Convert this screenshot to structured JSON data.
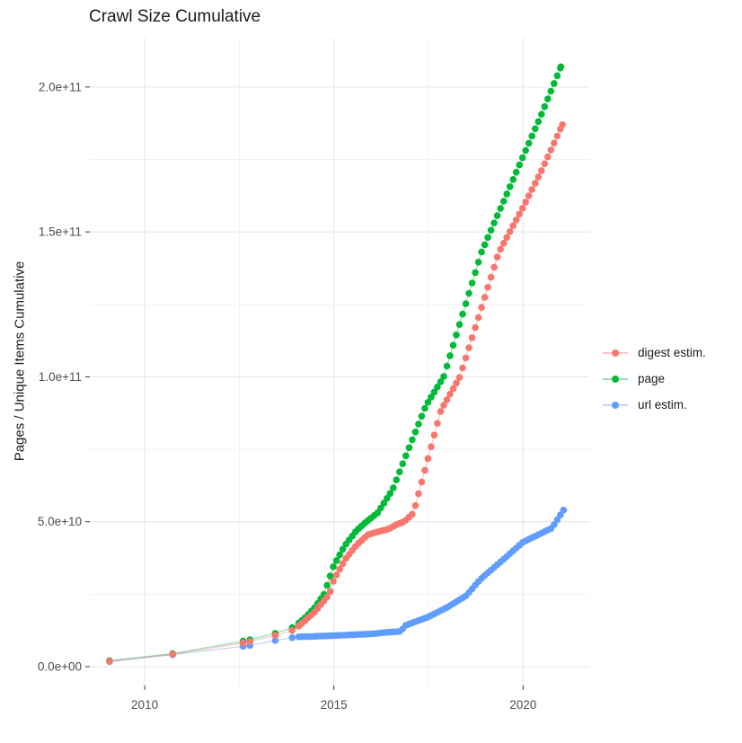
{
  "page": {
    "title": "Crawl Size Cumulative"
  },
  "chart_data": {
    "type": "scatter",
    "title": "Crawl Size Cumulative",
    "xlabel": "",
    "ylabel": "Pages / Unique Items Cumulative",
    "legend_position": "right",
    "grid": true,
    "value_unit": "billions (1e9)",
    "xlim": [
      2008.55,
      2021.75
    ],
    "ylim_e9": [
      -6.5,
      217
    ],
    "x_major_ticks": [
      {
        "value": 2010,
        "label": "2010"
      },
      {
        "value": 2015,
        "label": "2015"
      },
      {
        "value": 2020,
        "label": "2020"
      }
    ],
    "x_minor_ticks": [
      2012.5,
      2017.5
    ],
    "y_major_ticks": [
      {
        "value_e9": 0,
        "label": "0.0e+00"
      },
      {
        "value_e9": 50,
        "label": "5.0e+10"
      },
      {
        "value_e9": 100,
        "label": "1.0e+11"
      },
      {
        "value_e9": 150,
        "label": "1.5e+11"
      },
      {
        "value_e9": 200,
        "label": "2.0e+11"
      }
    ],
    "y_minor_ticks_e9": [
      25,
      75,
      125,
      175
    ],
    "monthly_step_years": 0.08333,
    "series": [
      {
        "name": "digest estim.",
        "color": "#F8766D",
        "sparse_points": [
          [
            2009.07,
            1.9
          ],
          [
            2010.74,
            4.3
          ],
          [
            2012.6,
            8.2
          ],
          [
            2012.78,
            8.7
          ],
          [
            2013.45,
            10.8
          ],
          [
            2013.9,
            12.5
          ]
        ],
        "anchors": [
          [
            2014.07,
            14
          ],
          [
            2014.25,
            16
          ],
          [
            2014.5,
            19
          ],
          [
            2014.88,
            25
          ],
          [
            2015.0,
            30
          ],
          [
            2015.3,
            37
          ],
          [
            2015.6,
            42
          ],
          [
            2015.9,
            45.5
          ],
          [
            2016.15,
            46.5
          ],
          [
            2016.45,
            47.5
          ],
          [
            2016.65,
            49
          ],
          [
            2016.86,
            50
          ],
          [
            2017.1,
            53
          ],
          [
            2017.83,
            88.5
          ],
          [
            2018.33,
            100
          ],
          [
            2019.36,
            143
          ],
          [
            2020.0,
            158.5
          ],
          [
            2020.5,
            171.5
          ],
          [
            2021.04,
            187
          ]
        ]
      },
      {
        "name": "page",
        "color": "#00BA38",
        "sparse_points": [
          [
            2009.07,
            2.1
          ],
          [
            2010.74,
            4.5
          ],
          [
            2012.6,
            8.8
          ],
          [
            2012.78,
            9.3
          ],
          [
            2013.45,
            11.5
          ],
          [
            2013.9,
            13.5
          ]
        ],
        "anchors": [
          [
            2014.07,
            15
          ],
          [
            2014.25,
            17
          ],
          [
            2014.5,
            20.5
          ],
          [
            2014.74,
            25
          ],
          [
            2015.0,
            35
          ],
          [
            2015.3,
            42
          ],
          [
            2015.6,
            47
          ],
          [
            2015.86,
            50
          ],
          [
            2016.15,
            53
          ],
          [
            2016.45,
            59
          ],
          [
            2016.55,
            61
          ],
          [
            2017.0,
            76
          ],
          [
            2017.43,
            90
          ],
          [
            2017.9,
            100
          ],
          [
            2018.9,
            143
          ],
          [
            2019.5,
            161
          ],
          [
            2020.0,
            176
          ],
          [
            2020.5,
            191
          ],
          [
            2021.0,
            207
          ]
        ]
      },
      {
        "name": "url estim.",
        "color": "#619CFF",
        "sparse_points": [
          [
            2009.07,
            1.7
          ],
          [
            2010.74,
            4.1
          ],
          [
            2012.6,
            7.0
          ],
          [
            2012.78,
            7.3
          ],
          [
            2013.45,
            9.0
          ],
          [
            2013.9,
            10.0
          ]
        ],
        "anchors": [
          [
            2014.07,
            10.3
          ],
          [
            2014.8,
            10.6
          ],
          [
            2015.5,
            11.0
          ],
          [
            2016.0,
            11.3
          ],
          [
            2016.36,
            11.8
          ],
          [
            2016.78,
            12.2
          ],
          [
            2016.88,
            14.2
          ],
          [
            2017.5,
            17.2
          ],
          [
            2018.0,
            20.5
          ],
          [
            2018.5,
            24.5
          ],
          [
            2018.86,
            30
          ],
          [
            2019.48,
            37
          ],
          [
            2020.0,
            43
          ],
          [
            2020.76,
            47.8
          ],
          [
            2021.07,
            54
          ]
        ]
      }
    ]
  },
  "legend": {
    "items": [
      {
        "label": "digest estim.",
        "color": "#F8766D"
      },
      {
        "label": "page",
        "color": "#00BA38"
      },
      {
        "label": "url estim.",
        "color": "#619CFF"
      }
    ]
  },
  "style_colors": {
    "grid_major": "#E4E4E4",
    "grid_minor": "#F2F2F2",
    "tick_mark": "#333333",
    "tick_label": "#4D4D4D",
    "text": "#1A1A1A"
  }
}
